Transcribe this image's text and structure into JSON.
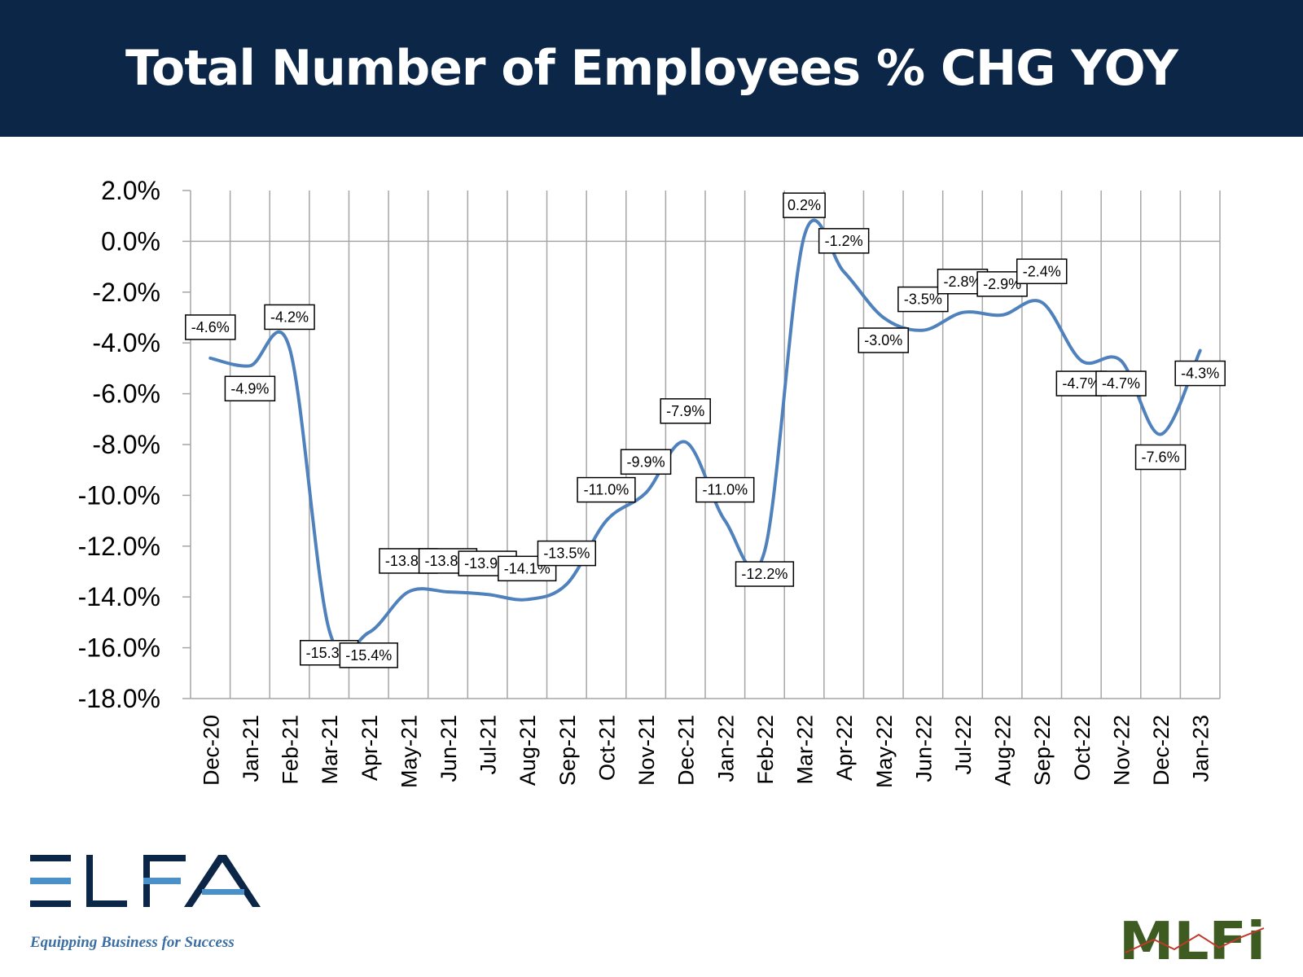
{
  "title": "Total Number of Employees % CHG YOY",
  "colors": {
    "header_bg": "#0b2647",
    "line": "#4f81bd",
    "grid": "#a6a6a6",
    "elfa_blue": "#4a90c9",
    "elfa_navy": "#0b2647",
    "mlfi_green": "#3e5b22"
  },
  "chart_data": {
    "type": "line",
    "title": "Total Number of Employees % CHG YOY",
    "xlabel": "",
    "ylabel": "",
    "ylim": [
      -18,
      2
    ],
    "yticks": [
      "2.0%",
      "0.0%",
      "-2.0%",
      "-4.0%",
      "-6.0%",
      "-8.0%",
      "-10.0%",
      "-12.0%",
      "-14.0%",
      "-16.0%",
      "-18.0%"
    ],
    "yticks_values": [
      2,
      0,
      -2,
      -4,
      -6,
      -8,
      -10,
      -12,
      -14,
      -16,
      -18
    ],
    "grid": "vertical",
    "categories": [
      "Dec-20",
      "Jan-21",
      "Feb-21",
      "Mar-21",
      "Apr-21",
      "May-21",
      "Jun-21",
      "Jul-21",
      "Aug-21",
      "Sep-21",
      "Oct-21",
      "Nov-21",
      "Dec-21",
      "Jan-22",
      "Feb-22",
      "Mar-22",
      "Apr-22",
      "May-22",
      "Jun-22",
      "Jul-22",
      "Aug-22",
      "Sep-22",
      "Oct-22",
      "Nov-22",
      "Dec-22",
      "Jan-23"
    ],
    "series": [
      {
        "values": [
          -4.6,
          -4.9,
          -4.2,
          -15.3,
          -15.4,
          -13.8,
          -13.8,
          -13.9,
          -14.1,
          -13.5,
          -11.0,
          -9.9,
          -7.9,
          -11.0,
          -12.2,
          0.2,
          -1.2,
          -3.0,
          -3.5,
          -2.8,
          -2.9,
          -2.4,
          -4.7,
          -4.7,
          -7.6,
          -4.3
        ],
        "labels": [
          "-4.6%",
          "-4.9%",
          "-4.2%",
          "-15.3%",
          "-15.4%",
          "-13.8%",
          "-13.8%",
          "-13.9%",
          "-14.1%",
          "-13.5%",
          "-11.0%",
          "-9.9%",
          "-7.9%",
          "-11.0%",
          "-12.2%",
          "0.2%",
          "-1.2%",
          "-3.0%",
          "-3.5%",
          "-2.8%",
          "-2.9%",
          "-2.4%",
          "-4.7%",
          "-4.7%",
          "-7.6%",
          "-4.3%"
        ]
      }
    ]
  },
  "logos": {
    "elfa": {
      "text": "ELFA",
      "tagline": "Equipping Business for Success"
    },
    "mlfi": {
      "text": "MLFi"
    }
  }
}
